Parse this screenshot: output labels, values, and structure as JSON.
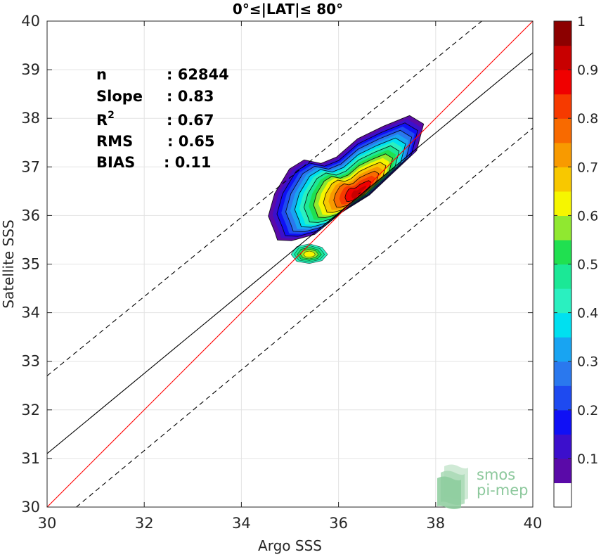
{
  "chart_data": {
    "type": "contour",
    "title": "0°≤|LAT|≤ 80°",
    "xlabel": "Argo SSS",
    "ylabel": "Satellite SSS",
    "xlim": [
      30,
      40
    ],
    "ylim": [
      30,
      40
    ],
    "xticks": [
      "30",
      "32",
      "34",
      "36",
      "38",
      "40"
    ],
    "yticks": [
      "30",
      "31",
      "32",
      "33",
      "34",
      "35",
      "36",
      "37",
      "38",
      "39",
      "40"
    ],
    "grid": true,
    "stats": [
      {
        "label": "n",
        "value": ": 62844"
      },
      {
        "label": "Slope",
        "value": ": 0.83"
      },
      {
        "label": "R",
        "sup": "2",
        "value": ": 0.67"
      },
      {
        "label": "RMS",
        "value": ": 0.65"
      },
      {
        "label": "BIAS",
        "value": ": 0.11"
      }
    ],
    "lines": [
      {
        "name": "identity",
        "color": "#ff0000",
        "dashed": false,
        "points": [
          [
            30,
            30
          ],
          [
            40,
            40
          ]
        ]
      },
      {
        "name": "regression",
        "color": "#000000",
        "dashed": false,
        "points": [
          [
            30,
            31.1
          ],
          [
            40,
            39.35
          ]
        ]
      },
      {
        "name": "upper-bound",
        "color": "#000000",
        "dashed": true,
        "points": [
          [
            30,
            32.7
          ],
          [
            38.95,
            40
          ]
        ]
      },
      {
        "name": "lower-bound",
        "color": "#000000",
        "dashed": true,
        "points": [
          [
            30.6,
            30
          ],
          [
            40,
            37.8
          ]
        ]
      }
    ],
    "density": {
      "peak": [
        36.45,
        36.45
      ],
      "levels": [
        0.05,
        0.1,
        0.15,
        0.2,
        0.25,
        0.3,
        0.35,
        0.4,
        0.45,
        0.5,
        0.55,
        0.6,
        0.65,
        0.7,
        0.75,
        0.8,
        0.85,
        0.9,
        0.95
      ]
    },
    "colorbar": {
      "min": 0,
      "max": 1,
      "ticks": [
        "0.1",
        "0.2",
        "0.3",
        "0.4",
        "0.5",
        "0.6",
        "0.7",
        "0.8",
        "0.9",
        "1"
      ],
      "colors": [
        "#ffffff",
        "#5a0aa8",
        "#3c0fcc",
        "#1010f5",
        "#1e4af0",
        "#2a78ee",
        "#18a4f2",
        "#00e0f0",
        "#2af0c0",
        "#1be896",
        "#20e050",
        "#90e830",
        "#f6f600",
        "#f8c800",
        "#f89a00",
        "#f86a00",
        "#f63a00",
        "#f00000",
        "#c80000",
        "#8c0000"
      ]
    },
    "logo": {
      "line1": "smos",
      "line2": "pi-mep"
    }
  }
}
